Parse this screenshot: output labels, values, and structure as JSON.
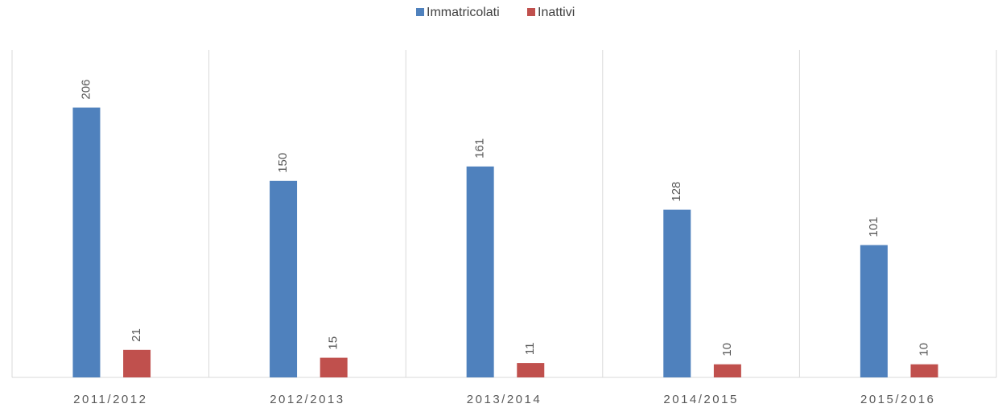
{
  "chart_data": {
    "type": "bar",
    "categories": [
      "2011/2012",
      "2012/2013",
      "2013/2014",
      "2014/2015",
      "2015/2016"
    ],
    "series": [
      {
        "name": "Immatricolati",
        "color": "#4f81bd",
        "values": [
          206,
          150,
          161,
          128,
          101
        ]
      },
      {
        "name": "Inattivi",
        "color": "#c0504d",
        "values": [
          21,
          15,
          11,
          10,
          10
        ]
      }
    ],
    "ylim": [
      0,
      250
    ],
    "legend": "top"
  }
}
